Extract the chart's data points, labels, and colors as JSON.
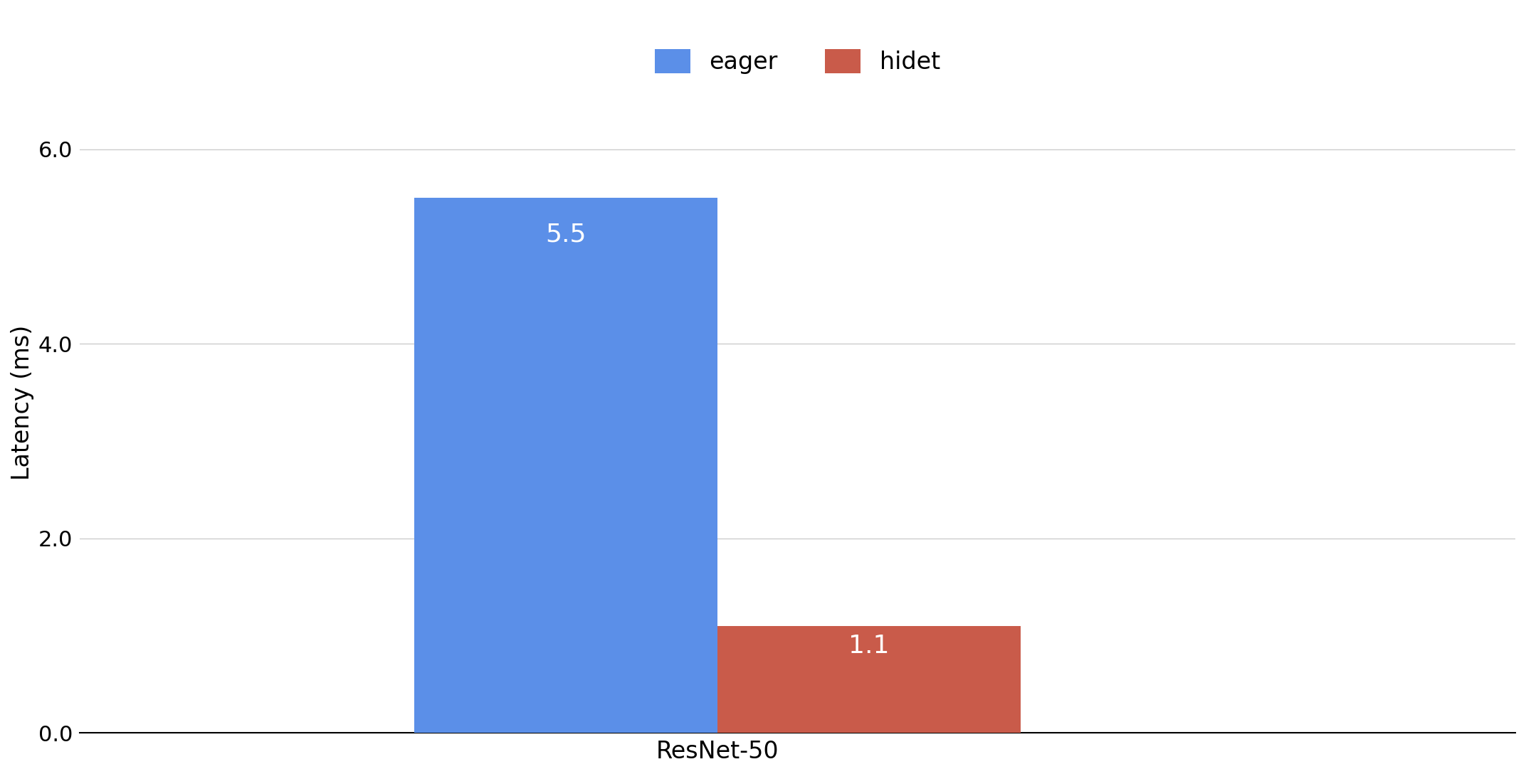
{
  "categories": [
    "ResNet-50"
  ],
  "eager_values": [
    5.5
  ],
  "hidet_values": [
    1.1
  ],
  "eager_color": "#5B8FE8",
  "hidet_color": "#C95B4A",
  "ylabel": "Latency (ms)",
  "xlabel": "ResNet-50",
  "ylim": [
    0,
    6.8
  ],
  "yticks": [
    0.0,
    2.0,
    4.0,
    6.0
  ],
  "ytick_labels": [
    "0.0",
    "2.0",
    "4.0",
    "6.0"
  ],
  "legend_labels": [
    "eager",
    "hidet"
  ],
  "bar_label_color": "white",
  "bar_label_fontsize": 26,
  "ylabel_fontsize": 24,
  "xlabel_fontsize": 24,
  "tick_fontsize": 22,
  "legend_fontsize": 24,
  "background_color": "#ffffff",
  "grid_color": "#cccccc",
  "bar_width": 0.38,
  "bar_gap": 0.0
}
